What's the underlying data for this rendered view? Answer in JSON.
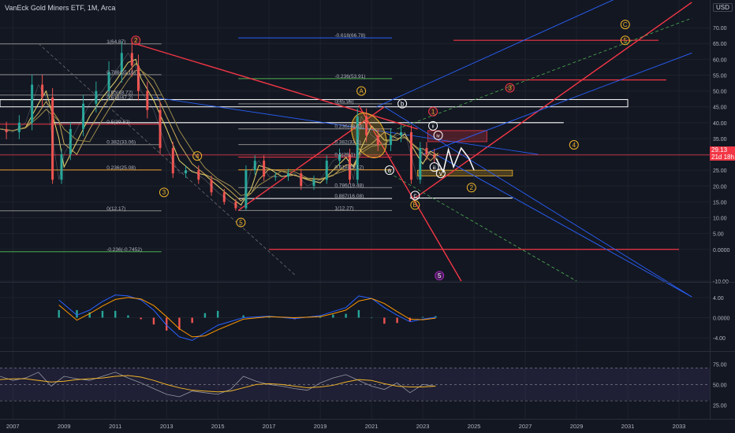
{
  "header": {
    "symbol": "VanEck Gold Miners ETF",
    "interval": "1M",
    "exchange": "Arca",
    "currency": "USD"
  },
  "price_tag": {
    "last": "29.13",
    "countdown": "21d 18h"
  },
  "colors": {
    "background": "#131722",
    "up": "#26a69a",
    "down": "#ef5350",
    "fib_red": "#f23645",
    "fib_blue": "#2962ff",
    "wave_orange": "#f0b429",
    "ma_yellow": "#e6d36a",
    "macd_blue": "#2962ff",
    "signal_orange": "#ff9800"
  },
  "chart_data": [
    {
      "type": "line",
      "name": "price",
      "ylim": [
        -10,
        75
      ],
      "yticks": [
        "70.00",
        "65.00",
        "60.00",
        "55.00",
        "50.00",
        "45.00",
        "40.00",
        "35.00",
        "30.00",
        "25.00",
        "20.00",
        "15.00",
        "10.00",
        "5.00",
        "0.0000",
        "-10.00"
      ],
      "ytick_values": [
        70,
        65,
        60,
        55,
        50,
        45,
        40,
        35,
        30,
        25,
        20,
        15,
        10,
        5,
        0,
        -10
      ],
      "xticks": [
        "2007",
        "2009",
        "2011",
        "2013",
        "2015",
        "2017",
        "2019",
        "2021",
        "2023",
        "2025",
        "2027",
        "2029",
        "2031",
        "2033"
      ],
      "xtick_values": [
        2007,
        2009,
        2011,
        2013,
        2015,
        2017,
        2019,
        2021,
        2023,
        2025,
        2027,
        2029,
        2031,
        2033
      ],
      "x": [
        2006.5,
        2007,
        2007.5,
        2008,
        2008.3,
        2008.8,
        2009,
        2009.5,
        2010,
        2010.5,
        2011,
        2011.5,
        2011.8,
        2012,
        2012.5,
        2013,
        2013.5,
        2014,
        2014.5,
        2015,
        2015.5,
        2015.9,
        2016.3,
        2016.6,
        2017,
        2017.5,
        2018,
        2018.5,
        2019,
        2019.5,
        2020,
        2020.3,
        2020.6,
        2021,
        2021.5,
        2022,
        2022.3,
        2022.8,
        2023,
        2023.3,
        2023.6
      ],
      "y": [
        38,
        37,
        40,
        52,
        48,
        22,
        30,
        38,
        46,
        50,
        56,
        62,
        58,
        50,
        44,
        32,
        24,
        25,
        22,
        18,
        15,
        13,
        25,
        28,
        23,
        23,
        24,
        20,
        22,
        28,
        30,
        22,
        42,
        36,
        33,
        36,
        37,
        22,
        32,
        30,
        29.13
      ],
      "fib_labels": [
        {
          "label": "1(64.87)",
          "x": 2010.6,
          "y": 64.87
        },
        {
          "label": "0.786(55.16)",
          "x": 2010.6,
          "y": 55.16
        },
        {
          "label": "0.65(48.72)",
          "x": 2010.6,
          "y": 48.72
        },
        {
          "label": "0.618(47.2)",
          "x": 2010.6,
          "y": 47.2
        },
        {
          "label": "0.5(39.52)",
          "x": 2010.6,
          "y": 39.52
        },
        {
          "label": "0.382(33.06)",
          "x": 2010.6,
          "y": 33.06
        },
        {
          "label": "0.236(25.08)",
          "x": 2010.6,
          "y": 25.08
        },
        {
          "label": "0(12.17)",
          "x": 2010.6,
          "y": 12.17
        },
        {
          "label": "-0.236(-0.7452)",
          "x": 2010.6,
          "y": -0.7452
        },
        {
          "label": "-0.618(66.78)",
          "x": 2019.5,
          "y": 66.78
        },
        {
          "label": "-0.236(53.91)",
          "x": 2019.5,
          "y": 53.91
        },
        {
          "label": "0(45.96)",
          "x": 2019.5,
          "y": 45.96
        },
        {
          "label": "0.236(38.03)",
          "x": 2019.5,
          "y": 38.03
        },
        {
          "label": "0.382(33.1)",
          "x": 2019.5,
          "y": 33.1
        },
        {
          "label": "0.5(29.1)",
          "x": 2019.5,
          "y": 29.1
        },
        {
          "label": "0.618(25.12)",
          "x": 2019.5,
          "y": 25.12
        },
        {
          "label": "0.786(19.48)",
          "x": 2019.5,
          "y": 19.48
        },
        {
          "label": "0.887(16.08)",
          "x": 2019.5,
          "y": 16.08
        },
        {
          "label": "1(12.27)",
          "x": 2019.5,
          "y": 12.27
        }
      ],
      "wave_labels": [
        {
          "label": "2",
          "x": 2011.8,
          "y": 66,
          "style": "red"
        },
        {
          "label": "3",
          "x": 2012.9,
          "y": 18,
          "style": "orange"
        },
        {
          "label": "4",
          "x": 2014.2,
          "y": 29.5,
          "style": "orange"
        },
        {
          "label": "5",
          "x": 2015.9,
          "y": 8.5,
          "style": "orange"
        },
        {
          "label": "A",
          "x": 2020.6,
          "y": 50,
          "style": "orange"
        },
        {
          "label": "B",
          "x": 2022.7,
          "y": 14,
          "style": "orange"
        },
        {
          "label": "1",
          "x": 2023.4,
          "y": 43.5,
          "style": "red"
        },
        {
          "label": "2",
          "x": 2024.9,
          "y": 19.5,
          "style": "orange"
        },
        {
          "label": "3",
          "x": 2026.4,
          "y": 51,
          "style": "red"
        },
        {
          "label": "4",
          "x": 2028.9,
          "y": 33,
          "style": "orange"
        },
        {
          "label": "C",
          "x": 2030.9,
          "y": 71,
          "style": "orange"
        },
        {
          "label": "5",
          "x": 2030.9,
          "y": 66,
          "style": "orange"
        },
        {
          "label": "a",
          "x": 2021.7,
          "y": 25,
          "style": "white"
        },
        {
          "label": "b",
          "x": 2022.2,
          "y": 46,
          "style": "white"
        },
        {
          "label": "c",
          "x": 2022.7,
          "y": 17,
          "style": "white"
        },
        {
          "label": "ii",
          "x": 2023.4,
          "y": 39,
          "style": "white"
        },
        {
          "label": "iv",
          "x": 2023.6,
          "y": 36,
          "style": "white"
        },
        {
          "label": "iii",
          "x": 2023.45,
          "y": 26,
          "style": "white"
        },
        {
          "label": "v",
          "x": 2023.7,
          "y": 24,
          "style": "white"
        },
        {
          "label": "5",
          "x": 2023.65,
          "y": -8.3,
          "style": "purple"
        }
      ]
    },
    {
      "type": "bar",
      "name": "macd",
      "ylim": [
        -6,
        6
      ],
      "yticks": [
        "4.00",
        "0.0000",
        "-4.00"
      ],
      "ytick_values": [
        4,
        0,
        -4
      ],
      "x": [
        2008.8,
        2009.5,
        2010,
        2010.5,
        2011,
        2011.5,
        2012,
        2012.5,
        2013,
        2013.5,
        2014,
        2014.5,
        2015,
        2016,
        2017,
        2018,
        2019,
        2019.5,
        2020,
        2020.5,
        2021,
        2021.5,
        2022,
        2022.5,
        2023,
        2023.5
      ],
      "macd": [
        3.5,
        0.5,
        1.5,
        3.2,
        4.5,
        4.3,
        3.5,
        1.5,
        -1.5,
        -3.8,
        -4.5,
        -3.0,
        -1.5,
        0,
        0.3,
        -0.2,
        0.4,
        1.2,
        2.0,
        4.3,
        3.8,
        2.0,
        0.5,
        -0.8,
        -0.3,
        0.1
      ],
      "signal": [
        2.5,
        -0.5,
        0.8,
        2.3,
        3.6,
        4.0,
        3.7,
        2.4,
        0.2,
        -2.2,
        -3.8,
        -3.6,
        -2.4,
        -0.3,
        0.2,
        0,
        0.2,
        0.8,
        1.5,
        3.3,
        3.8,
        2.8,
        1.2,
        -0.3,
        -0.4,
        -0.1
      ]
    },
    {
      "type": "line",
      "name": "rsi",
      "ylim": [
        10,
        85
      ],
      "yticks": [
        "75.00",
        "50.00",
        "25.00"
      ],
      "ytick_values": [
        75,
        50,
        25
      ],
      "band_upper": 70,
      "band_lower": 30,
      "x": [
        2006.5,
        2007,
        2007.5,
        2008,
        2008.5,
        2009,
        2009.5,
        2010,
        2010.5,
        2011,
        2011.5,
        2012,
        2012.5,
        2013,
        2013.5,
        2014,
        2014.5,
        2015,
        2015.5,
        2016,
        2016.5,
        2017,
        2017.5,
        2018,
        2018.5,
        2019,
        2019.5,
        2020,
        2020.5,
        2021,
        2021.5,
        2022,
        2022.5,
        2023,
        2023.5
      ],
      "rsi": [
        60,
        55,
        58,
        65,
        48,
        60,
        57,
        55,
        60,
        65,
        58,
        52,
        45,
        38,
        35,
        42,
        40,
        38,
        44,
        60,
        54,
        50,
        48,
        45,
        43,
        52,
        58,
        62,
        55,
        48,
        44,
        52,
        40,
        50,
        48
      ],
      "rsi_ma": [
        56,
        57,
        57,
        55,
        53,
        54,
        56,
        57,
        58,
        60,
        61,
        59,
        55,
        50,
        46,
        43,
        42,
        41,
        42,
        46,
        50,
        51,
        50,
        48,
        46,
        47,
        49,
        53,
        56,
        55,
        51,
        48,
        47,
        47,
        48
      ]
    }
  ]
}
